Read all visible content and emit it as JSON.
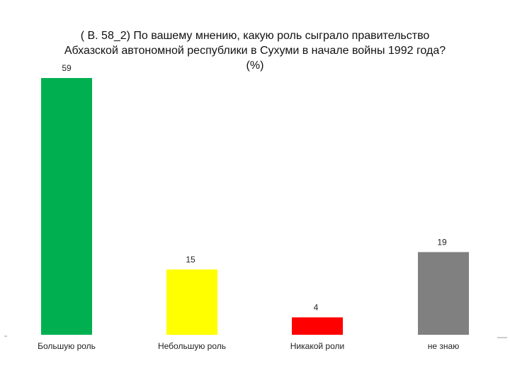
{
  "chart_data": {
    "type": "bar",
    "title": "( В. 58_2)  По вашему мнению, какую роль сыграло правительство\nАбхазской автономной республики в Сухуми в начале войны 1992 года?\n(%)",
    "categories": [
      "Большую роль",
      "Небольшую роль",
      "Никакой роли",
      "не знаю"
    ],
    "values": [
      59,
      15,
      4,
      19
    ],
    "colors": [
      "#00b050",
      "#ffff00",
      "#ff0000",
      "#808080"
    ],
    "data_labels": [
      "59",
      "15",
      "4",
      "19"
    ],
    "ylim": [
      0,
      59
    ],
    "grid": false,
    "legend": "none"
  }
}
